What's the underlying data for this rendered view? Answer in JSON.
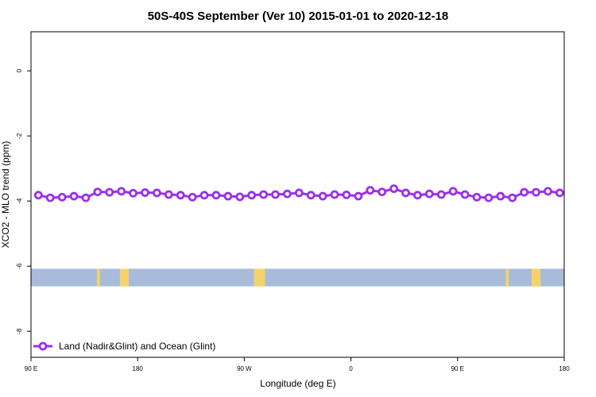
{
  "chart_data": {
    "type": "line",
    "title": "50S-40S September (Ver 10)   2015-01-01 to 2020-12-18",
    "xlabel": "Longitude (deg E)",
    "ylabel": "XCO2 - MLO trend (ppm)",
    "xlim": [
      90,
      450
    ],
    "ylim": [
      -8.8,
      1.2
    ],
    "x_ticks": [
      {
        "value": 90,
        "label": "90 E"
      },
      {
        "value": 162,
        "label": "180"
      },
      {
        "value": 234,
        "label": "90 W"
      },
      {
        "value": 306,
        "label": "0"
      },
      {
        "value": 378,
        "label": "90 E"
      },
      {
        "value": 450,
        "label": "180"
      }
    ],
    "y_ticks": [
      {
        "value": 0,
        "label": "0"
      },
      {
        "value": -2,
        "label": "-2"
      },
      {
        "value": -4,
        "label": "-4"
      },
      {
        "value": -6,
        "label": "-6"
      },
      {
        "value": -8,
        "label": "-8"
      }
    ],
    "series": [
      {
        "name": "Land (Nadir&Glint) and Ocean (Glint)",
        "color": "#9b30e8",
        "x": [
          95,
          103,
          111,
          119,
          127,
          135,
          143,
          151,
          159,
          167,
          175,
          183,
          191,
          199,
          207,
          215,
          223,
          231,
          239,
          247,
          255,
          263,
          271,
          279,
          287,
          295,
          303,
          311,
          319,
          327,
          335,
          343,
          351,
          359,
          367,
          375,
          383,
          391,
          399,
          407,
          415,
          423,
          431,
          439,
          447
        ],
        "y": [
          -3.82,
          -3.9,
          -3.88,
          -3.85,
          -3.9,
          -3.72,
          -3.73,
          -3.7,
          -3.76,
          -3.74,
          -3.75,
          -3.8,
          -3.82,
          -3.88,
          -3.82,
          -3.82,
          -3.85,
          -3.87,
          -3.82,
          -3.8,
          -3.8,
          -3.78,
          -3.75,
          -3.82,
          -3.85,
          -3.8,
          -3.81,
          -3.85,
          -3.67,
          -3.72,
          -3.62,
          -3.75,
          -3.82,
          -3.78,
          -3.8,
          -3.7,
          -3.8,
          -3.88,
          -3.9,
          -3.85,
          -3.9,
          -3.73,
          -3.73,
          -3.7,
          -3.75
        ]
      }
    ],
    "land_ocean_band": {
      "y_range": [
        -6.62,
        -6.08
      ],
      "ocean_color": "#a8bcda",
      "land_color": "#f4d26b",
      "land_x_ranges": [
        [
          134.5,
          136.5
        ],
        [
          150,
          156
        ],
        [
          240.5,
          248
        ],
        [
          410.5,
          412.5
        ],
        [
          428,
          434
        ]
      ]
    },
    "grid": false,
    "legend": "bottom-left"
  }
}
